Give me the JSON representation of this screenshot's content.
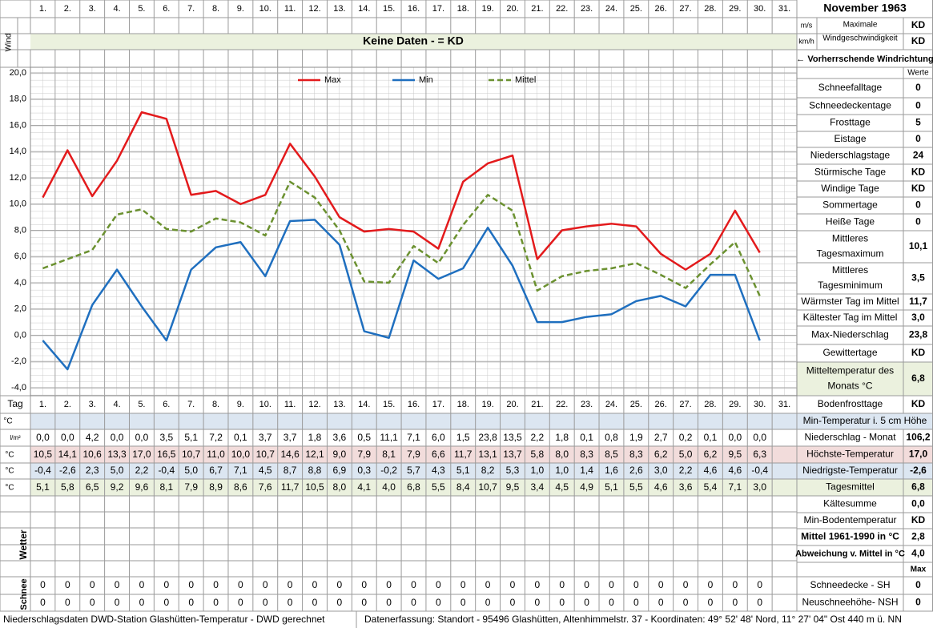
{
  "header": {
    "title": "November 1963"
  },
  "wind": {
    "label": "Wind",
    "unit_ms": "m/s",
    "unit_kmh": "km/h",
    "max_label": [
      "Maximale",
      "Windgeschwindigkeit"
    ],
    "max_ms": "KD",
    "max_kmh": "KD",
    "no_data": "Keine Daten -  = KD",
    "direction": "← Vorherrschende Windrichtung"
  },
  "chart_data": {
    "type": "line",
    "categories": [
      "1.",
      "2.",
      "3.",
      "4.",
      "5.",
      "6.",
      "7.",
      "8.",
      "9.",
      "10.",
      "11.",
      "12.",
      "13.",
      "14.",
      "15.",
      "16.",
      "17.",
      "18.",
      "19.",
      "20.",
      "21.",
      "22.",
      "23.",
      "24.",
      "25.",
      "26.",
      "27.",
      "28.",
      "29.",
      "30.",
      "31."
    ],
    "ylim": [
      -4,
      20
    ],
    "yticks": [
      {
        "value": -4,
        "label": "-4,0"
      },
      {
        "value": -2,
        "label": "-2,0"
      },
      {
        "value": 0,
        "label": "0,0"
      },
      {
        "value": 2,
        "label": "2,0"
      },
      {
        "value": 4,
        "label": "4,0"
      },
      {
        "value": 6,
        "label": "6,0"
      },
      {
        "value": 8,
        "label": "8,0"
      },
      {
        "value": 10,
        "label": "10,0"
      },
      {
        "value": 12,
        "label": "12,0"
      },
      {
        "value": 14,
        "label": "14,0"
      },
      {
        "value": 16,
        "label": "16,0"
      },
      {
        "value": 18,
        "label": "18,0"
      },
      {
        "value": 20,
        "label": "20,0"
      }
    ],
    "grid": true,
    "legend": "top",
    "series": [
      {
        "name": "Max",
        "color": "#e31a1c",
        "dash": false,
        "values": [
          10.5,
          14.1,
          10.6,
          13.3,
          17.0,
          16.5,
          10.7,
          11.0,
          10.0,
          10.7,
          14.6,
          12.1,
          9.0,
          7.9,
          8.1,
          7.9,
          6.6,
          11.7,
          13.1,
          13.7,
          5.8,
          8.0,
          8.3,
          8.5,
          8.3,
          6.2,
          5.0,
          6.2,
          9.5,
          6.3,
          null
        ],
        "value_labels": [
          "10,5",
          "14,1",
          "10,6",
          "13,3",
          "17,0",
          "16,5",
          "10,7",
          "11,0",
          "10,0",
          "10,7",
          "14,6",
          "12,1",
          "9,0",
          "7,9",
          "8,1",
          "7,9",
          "6,6",
          "11,7",
          "13,1",
          "13,7",
          "5,8",
          "8,0",
          "8,3",
          "8,5",
          "8,3",
          "6,2",
          "5,0",
          "6,2",
          "9,5",
          "6,3",
          null
        ]
      },
      {
        "name": "Min",
        "color": "#1f6fbf",
        "dash": false,
        "values": [
          -0.4,
          -2.6,
          2.3,
          5.0,
          2.2,
          -0.4,
          5.0,
          6.7,
          7.1,
          4.5,
          8.7,
          8.8,
          6.9,
          0.3,
          -0.2,
          5.7,
          4.3,
          5.1,
          8.2,
          5.3,
          1.0,
          1.0,
          1.4,
          1.6,
          2.6,
          3.0,
          2.2,
          4.6,
          4.6,
          -0.4,
          null
        ],
        "value_labels": [
          "-0,4",
          "-2,6",
          "2,3",
          "5,0",
          "2,2",
          "-0,4",
          "5,0",
          "6,7",
          "7,1",
          "4,5",
          "8,7",
          "8,8",
          "6,9",
          "0,3",
          "-0,2",
          "5,7",
          "4,3",
          "5,1",
          "8,2",
          "5,3",
          "1,0",
          "1,0",
          "1,4",
          "1,6",
          "2,6",
          "3,0",
          "2,2",
          "4,6",
          "4,6",
          "-0,4",
          null
        ]
      },
      {
        "name": "Mittel",
        "color": "#6b9130",
        "dash": true,
        "values": [
          5.1,
          5.8,
          6.5,
          9.2,
          9.6,
          8.1,
          7.9,
          8.9,
          8.6,
          7.6,
          11.7,
          10.5,
          8.0,
          4.1,
          4.0,
          6.8,
          5.5,
          8.4,
          10.7,
          9.5,
          3.4,
          4.5,
          4.9,
          5.1,
          5.5,
          4.6,
          3.6,
          5.4,
          7.1,
          3.0,
          null
        ],
        "value_labels": [
          "5,1",
          "5,8",
          "6,5",
          "9,2",
          "9,6",
          "8,1",
          "7,9",
          "8,9",
          "8,6",
          "7,6",
          "11,7",
          "10,5",
          "8,0",
          "4,1",
          "4,0",
          "6,8",
          "5,5",
          "8,4",
          "10,7",
          "9,5",
          "3,4",
          "4,5",
          "4,9",
          "5,1",
          "5,5",
          "4,6",
          "3,6",
          "5,4",
          "7,1",
          "3,0",
          null
        ]
      }
    ]
  },
  "stats": {
    "header": "Werte",
    "rows": [
      {
        "label": [
          "Schneefalltage"
        ],
        "value": "0"
      },
      {
        "label": [
          "Schneedeckentage"
        ],
        "value": "0"
      },
      {
        "label": [
          "Frosttage"
        ],
        "value": "5"
      },
      {
        "label": [
          "Eistage"
        ],
        "value": "0"
      },
      {
        "label": [
          "Niederschlagstage"
        ],
        "value": "24"
      },
      {
        "label": [
          "Stürmische Tage"
        ],
        "value": "KD"
      },
      {
        "label": [
          "Windige Tage"
        ],
        "value": "KD"
      },
      {
        "label": [
          "Sommertage"
        ],
        "value": "0"
      },
      {
        "label": [
          "Heiße Tage"
        ],
        "value": "0"
      },
      {
        "label": [
          "Mittleres",
          "Tagesmaximum"
        ],
        "value": "10,1"
      },
      {
        "label": [
          "Mittleres",
          "Tagesminimum"
        ],
        "value": "3,5"
      },
      {
        "label": [
          "Wärmster Tag im Mittel"
        ],
        "value": "11,7"
      },
      {
        "label": [
          "Kältester Tag im Mittel"
        ],
        "value": "3,0"
      },
      {
        "label": [
          "Max-Niederschlag"
        ],
        "value": "23,8"
      },
      {
        "label": [
          "Gewittertage"
        ],
        "value": "KD"
      },
      {
        "label": [
          "Mitteltemperatur des",
          "Monats °C"
        ],
        "value": "6,8"
      }
    ]
  },
  "table": {
    "day_label": "Tag",
    "unit_c": "°C",
    "unit_precip": "l/m²",
    "weather_label": "Wetter",
    "snow_label": "Schnee",
    "precipitation": [
      "0,0",
      "0,0",
      "4,2",
      "0,0",
      "0,0",
      "3,5",
      "5,1",
      "7,2",
      "0,1",
      "3,7",
      "3,7",
      "1,8",
      "3,6",
      "0,5",
      "11,1",
      "7,1",
      "6,0",
      "1,5",
      "23,8",
      "13,5",
      "2,2",
      "1,8",
      "0,1",
      "0,8",
      "1,9",
      "2,7",
      "0,2",
      "0,1",
      "0,0",
      "0,0"
    ],
    "snow_depth": [
      0,
      0,
      0,
      0,
      0,
      0,
      0,
      0,
      0,
      0,
      0,
      0,
      0,
      0,
      0,
      0,
      0,
      0,
      0,
      0,
      0,
      0,
      0,
      0,
      0,
      0,
      0,
      0,
      0,
      0
    ],
    "new_snow": [
      0,
      0,
      0,
      0,
      0,
      0,
      0,
      0,
      0,
      0,
      0,
      0,
      0,
      0,
      0,
      0,
      0,
      0,
      0,
      0,
      0,
      0,
      0,
      0,
      0,
      0,
      0,
      0,
      0,
      0
    ]
  },
  "summary": {
    "rows": [
      {
        "label": "Bodenfrosttage",
        "value": "KD"
      },
      {
        "label": "Min-Temperatur i. 5 cm Höhe"
      },
      {
        "label": "Niederschlag - Monat",
        "value": "106,2"
      },
      {
        "label": "Höchste-Temperatur",
        "value": "17,0"
      },
      {
        "label": "Niedrigste-Temperatur",
        "value": "-2,6"
      },
      {
        "label": "Tagesmittel",
        "value": "6,8"
      },
      {
        "label": "Kältesumme",
        "value": "0,0"
      },
      {
        "label": "Min-Bodentemperatur",
        "value": "KD"
      },
      {
        "label": "Mittel 1961-1990 in °C",
        "value": "2,8"
      },
      {
        "label": "Abweichung v. Mittel in °C",
        "value": "4,0"
      },
      {
        "value": "Max"
      },
      {
        "label": "Schneedecke -   SH",
        "value": "0"
      },
      {
        "label": "Neuschneehöhe- NSH",
        "value": "0"
      }
    ]
  },
  "footer": {
    "source": "Niederschlagsdaten DWD-Station Glashütten-Temperatur -  DWD gerechnet",
    "location": "Datenerfassung: Standort -  95496 Glashütten, Altenhimmelstr. 37 - Koordinaten: 49° 52' 48' Nord,  11° 27' 04\" Ost  440 m ü. NN"
  }
}
